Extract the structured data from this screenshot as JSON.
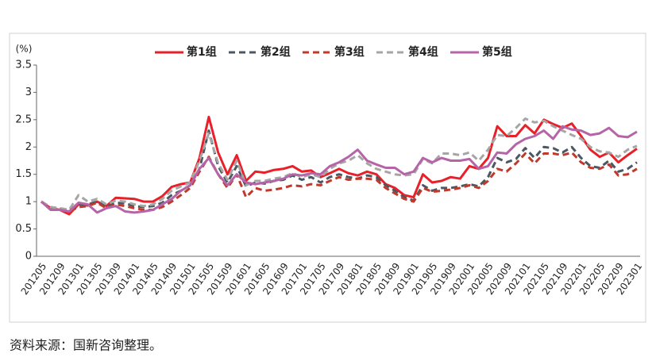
{
  "chart_data": {
    "type": "line",
    "y_unit": "(%)",
    "source": "资料来源：国新咨询整理。",
    "categories": [
      "201205",
      null,
      "201209",
      null,
      "201301",
      null,
      "201305",
      null,
      "201309",
      null,
      "201401",
      null,
      "201405",
      null,
      "201409",
      null,
      "201501",
      null,
      "201505",
      null,
      "201509",
      null,
      "201601",
      null,
      "201605",
      null,
      "201609",
      null,
      "201701",
      null,
      "201705",
      null,
      "201709",
      null,
      "201801",
      null,
      "201805",
      null,
      "201809",
      null,
      "201901",
      null,
      "201905",
      null,
      "201909",
      null,
      "202001",
      null,
      "202005",
      null,
      "202009",
      null,
      "202101",
      null,
      "202105",
      null,
      "202109",
      null,
      "202201",
      null,
      "202205",
      null,
      "202209",
      null,
      "202301"
    ],
    "series": [
      {
        "name": "第1组",
        "color": "#e8202a",
        "line_style": "solid",
        "values": [
          1.0,
          0.88,
          0.85,
          0.77,
          0.95,
          0.93,
          1.0,
          0.92,
          1.07,
          1.06,
          1.05,
          1.0,
          1.0,
          1.1,
          1.27,
          1.32,
          1.35,
          1.8,
          2.55,
          1.9,
          1.5,
          1.85,
          1.38,
          1.55,
          1.53,
          1.58,
          1.6,
          1.65,
          1.55,
          1.57,
          1.45,
          1.52,
          1.6,
          1.52,
          1.48,
          1.55,
          1.5,
          1.32,
          1.25,
          1.12,
          1.08,
          1.5,
          1.35,
          1.38,
          1.45,
          1.42,
          1.65,
          1.6,
          1.8,
          2.38,
          2.2,
          2.2,
          2.4,
          2.25,
          2.5,
          2.42,
          2.35,
          2.43,
          2.2,
          1.95,
          1.82,
          1.9,
          1.72,
          1.85,
          1.97
        ]
      },
      {
        "name": "第2组",
        "color": "#4b5761",
        "line_style": "dashed",
        "values": [
          1.0,
          0.88,
          0.87,
          0.85,
          0.92,
          0.95,
          1.0,
          0.9,
          0.98,
          0.97,
          0.92,
          0.9,
          0.92,
          0.98,
          1.12,
          1.2,
          1.3,
          1.6,
          2.3,
          1.65,
          1.35,
          1.65,
          1.28,
          1.35,
          1.33,
          1.38,
          1.4,
          1.48,
          1.4,
          1.45,
          1.35,
          1.45,
          1.5,
          1.45,
          1.42,
          1.48,
          1.45,
          1.3,
          1.2,
          1.08,
          1.02,
          1.3,
          1.2,
          1.25,
          1.25,
          1.28,
          1.32,
          1.28,
          1.45,
          1.8,
          1.72,
          1.78,
          1.98,
          1.8,
          2.0,
          1.98,
          1.9,
          2.0,
          1.8,
          1.65,
          1.62,
          1.75,
          1.55,
          1.6,
          1.72
        ]
      },
      {
        "name": "第3组",
        "color": "#c0392b",
        "line_style": "dashed",
        "values": [
          1.0,
          0.9,
          0.87,
          0.82,
          0.9,
          0.92,
          0.98,
          0.88,
          0.95,
          0.92,
          0.88,
          0.85,
          0.85,
          0.9,
          1.0,
          1.12,
          1.25,
          1.55,
          1.82,
          1.5,
          1.25,
          1.5,
          1.08,
          1.25,
          1.2,
          1.22,
          1.25,
          1.3,
          1.28,
          1.32,
          1.3,
          1.38,
          1.45,
          1.4,
          1.42,
          1.42,
          1.4,
          1.25,
          1.15,
          1.05,
          1.0,
          1.25,
          1.18,
          1.2,
          1.22,
          1.25,
          1.3,
          1.25,
          1.38,
          1.6,
          1.55,
          1.7,
          1.88,
          1.7,
          1.88,
          1.88,
          1.85,
          1.9,
          1.72,
          1.62,
          1.6,
          1.68,
          1.48,
          1.5,
          1.6
        ]
      },
      {
        "name": "第4组",
        "color": "#a6a6a6",
        "line_style": "dashed",
        "values": [
          1.0,
          0.9,
          0.88,
          0.85,
          1.12,
          1.0,
          1.05,
          0.95,
          1.02,
          1.0,
          0.95,
          0.92,
          0.95,
          1.05,
          1.2,
          1.28,
          1.35,
          1.75,
          2.25,
          1.7,
          1.4,
          1.75,
          1.3,
          1.38,
          1.38,
          1.42,
          1.45,
          1.52,
          1.45,
          1.5,
          1.45,
          1.6,
          1.7,
          1.75,
          1.85,
          1.7,
          1.6,
          1.55,
          1.5,
          1.48,
          1.5,
          1.78,
          1.7,
          1.88,
          1.88,
          1.85,
          1.9,
          1.75,
          1.95,
          2.22,
          2.2,
          2.35,
          2.52,
          2.45,
          2.48,
          2.38,
          2.3,
          2.22,
          2.15,
          2.0,
          1.92,
          1.9,
          1.82,
          1.95,
          2.02
        ]
      },
      {
        "name": "第5组",
        "color": "#b565a7",
        "line_style": "solid",
        "values": [
          1.0,
          0.85,
          0.85,
          0.82,
          0.98,
          0.95,
          0.8,
          0.88,
          0.92,
          0.82,
          0.8,
          0.82,
          0.85,
          0.95,
          1.05,
          1.2,
          1.3,
          1.6,
          1.8,
          1.5,
          1.3,
          1.5,
          1.35,
          1.32,
          1.35,
          1.38,
          1.42,
          1.5,
          1.48,
          1.52,
          1.5,
          1.65,
          1.72,
          1.82,
          1.95,
          1.75,
          1.68,
          1.62,
          1.62,
          1.5,
          1.55,
          1.8,
          1.72,
          1.8,
          1.75,
          1.75,
          1.78,
          1.6,
          1.65,
          1.9,
          1.88,
          2.05,
          2.15,
          2.2,
          2.3,
          2.15,
          2.38,
          2.32,
          2.3,
          2.22,
          2.25,
          2.35,
          2.2,
          2.18,
          2.28
        ]
      }
    ],
    "ylim": [
      0,
      3.5
    ],
    "yticks": [
      0,
      0.5,
      1,
      1.5,
      2,
      2.5,
      3,
      3.5
    ],
    "grid": false,
    "legend": "top"
  }
}
